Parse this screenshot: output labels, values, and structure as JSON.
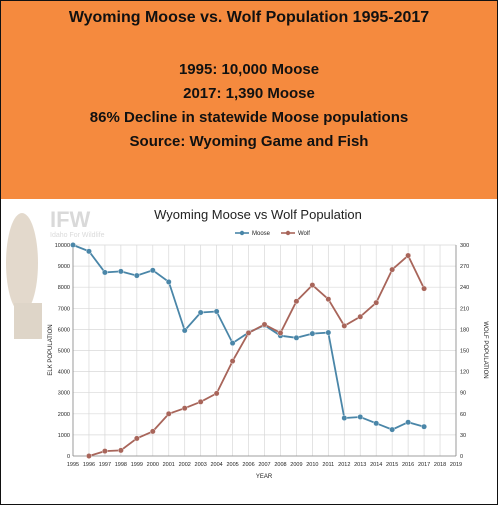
{
  "banner": {
    "title": "Wyoming Moose vs. Wolf Population 1995-2017",
    "line1": "1995: 10,000 Moose",
    "line2": "2017: 1,390 Moose",
    "line3": "86% Decline in statewide Moose populations",
    "line4": "Source: Wyoming Game and Fish",
    "background": "#f58a3e"
  },
  "watermark": {
    "text": "IFW",
    "subtext": "Idaho For Wildlife"
  },
  "chart_data": {
    "type": "line",
    "title": "Wyoming Moose vs Wolf Population",
    "xlabel": "YEAR",
    "ylabel_left": "ELK POPULATION",
    "ylabel_right": "WOLF POPULATION",
    "x": [
      1995,
      1996,
      1997,
      1998,
      1999,
      2000,
      2001,
      2002,
      2003,
      2004,
      2005,
      2006,
      2007,
      2008,
      2009,
      2010,
      2011,
      2012,
      2013,
      2014,
      2015,
      2016,
      2017
    ],
    "x_ticks": [
      "1995",
      "1996",
      "1997",
      "1998",
      "1999",
      "2000",
      "2001",
      "2002",
      "2003",
      "2004",
      "2005",
      "2006",
      "2007",
      "2008",
      "2009",
      "2010",
      "2011",
      "2012",
      "2013",
      "2014",
      "2015",
      "2016",
      "2017",
      "2018",
      "2019"
    ],
    "xlim": [
      1995,
      2019
    ],
    "ylim_left": [
      0,
      10000
    ],
    "ylim_right": [
      0,
      300
    ],
    "y_ticks_left": [
      "0",
      "1000",
      "2000",
      "3000",
      "4000",
      "5000",
      "6000",
      "7000",
      "8000",
      "9000",
      "10000"
    ],
    "y_ticks_right": [
      "0",
      "30",
      "60",
      "90",
      "120",
      "150",
      "180",
      "210",
      "240",
      "270",
      "300"
    ],
    "grid": true,
    "legend": "top-center",
    "series": [
      {
        "name": "Moose",
        "axis": "left",
        "color": "#4a86a8",
        "x": [
          1995,
          1996,
          1997,
          1998,
          1999,
          2000,
          2001,
          2002,
          2003,
          2004,
          2005,
          2006,
          2007,
          2008,
          2009,
          2010,
          2011,
          2012,
          2013,
          2014,
          2015,
          2016,
          2017
        ],
        "values": [
          10000,
          9700,
          8700,
          8750,
          8550,
          8800,
          8250,
          5950,
          6800,
          6850,
          5350,
          5850,
          6200,
          5700,
          5600,
          5800,
          5850,
          1800,
          1850,
          1550,
          1250,
          1600,
          1390
        ]
      },
      {
        "name": "Wolf",
        "axis": "right",
        "color": "#a8655a",
        "x": [
          1996,
          1997,
          1998,
          1999,
          2000,
          2001,
          2002,
          2003,
          2004,
          2005,
          2006,
          2007,
          2008,
          2009,
          2010,
          2011,
          2012,
          2013,
          2014,
          2015,
          2016,
          2017
        ],
        "values": [
          0,
          7,
          8,
          25,
          35,
          60,
          68,
          77,
          89,
          135,
          175,
          187,
          175,
          220,
          243,
          223,
          185,
          198,
          218,
          265,
          285,
          238
        ]
      }
    ]
  }
}
